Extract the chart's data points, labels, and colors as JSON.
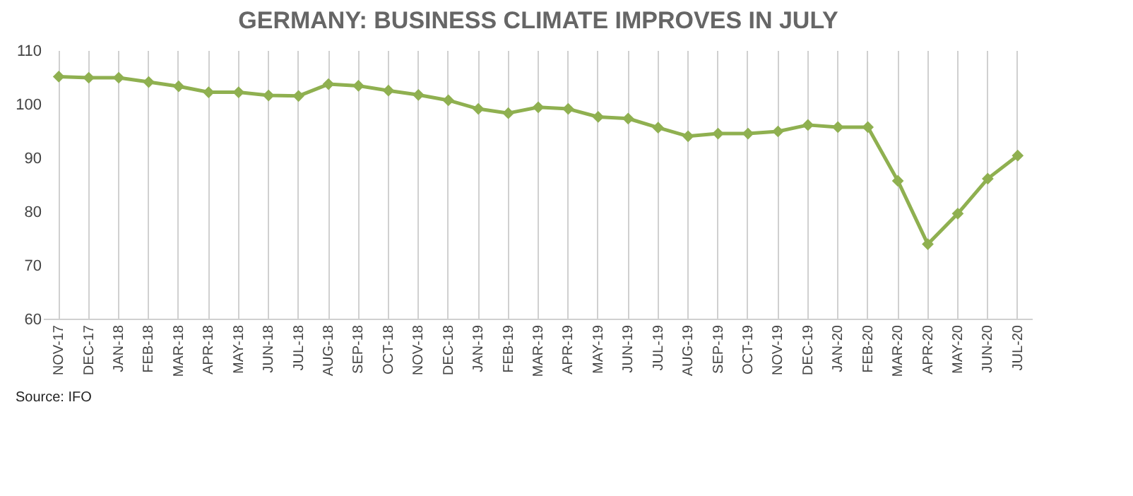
{
  "chart_data": {
    "type": "line",
    "title": "GERMANY: BUSINESS CLIMATE IMPROVES IN JULY",
    "categories": [
      "NOV-17",
      "DEC-17",
      "JAN-18",
      "FEB-18",
      "MAR-18",
      "APR-18",
      "MAY-18",
      "JUN-18",
      "JUL-18",
      "AUG-18",
      "SEP-18",
      "OCT-18",
      "NOV-18",
      "DEC-18",
      "JAN-19",
      "FEB-19",
      "MAR-19",
      "APR-19",
      "MAY-19",
      "JUN-19",
      "JUL-19",
      "AUG-19",
      "SEP-19",
      "OCT-19",
      "NOV-19",
      "DEC-19",
      "JAN-20",
      "FEB-20",
      "MAR-20",
      "APR-20",
      "MAY-20",
      "JUN-20",
      "JUL-20"
    ],
    "series": [
      {
        "color": "#8fb050",
        "values": [
          105.2,
          105.0,
          105.0,
          104.2,
          103.4,
          102.3,
          102.3,
          101.7,
          101.6,
          103.8,
          103.5,
          102.6,
          101.8,
          100.8,
          99.2,
          98.4,
          99.5,
          99.2,
          97.7,
          97.4,
          95.7,
          94.1,
          94.6,
          94.6,
          95.0,
          96.2,
          95.8,
          95.8,
          85.8,
          74.0,
          79.7,
          86.2,
          90.5
        ]
      }
    ],
    "ylim": [
      60,
      110
    ],
    "yticks": [
      60,
      70,
      80,
      90,
      100,
      110
    ],
    "grid": "x",
    "marker": "diamond",
    "line_style": "solid",
    "legend": false,
    "annotations": [
      "Source: IFO"
    ]
  }
}
